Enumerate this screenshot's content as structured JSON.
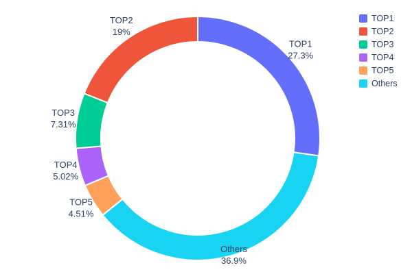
{
  "chart_data": {
    "type": "pie",
    "subtype": "donut",
    "hole": 0.79,
    "title": "",
    "labels": [
      "TOP1",
      "TOP2",
      "TOP3",
      "TOP4",
      "TOP5",
      "Others"
    ],
    "values": [
      27.3,
      19,
      7.31,
      5.02,
      4.51,
      36.9
    ],
    "percent_labels": [
      "27.3%",
      "19%",
      "7.31%",
      "5.02%",
      "4.51%",
      "36.9%"
    ],
    "colors": [
      "#636efa",
      "#ef553b",
      "#00cc96",
      "#ab63fa",
      "#ffa15a",
      "#19d3f3"
    ],
    "clockwise_order_from_top": [
      0,
      5,
      4,
      3,
      2,
      1
    ],
    "legend_position": "right",
    "legend_entries": [
      "TOP1",
      "TOP2",
      "TOP3",
      "TOP4",
      "TOP5",
      "Others"
    ],
    "text_color": "#2a3f5f",
    "background_color": "#ffffff"
  }
}
